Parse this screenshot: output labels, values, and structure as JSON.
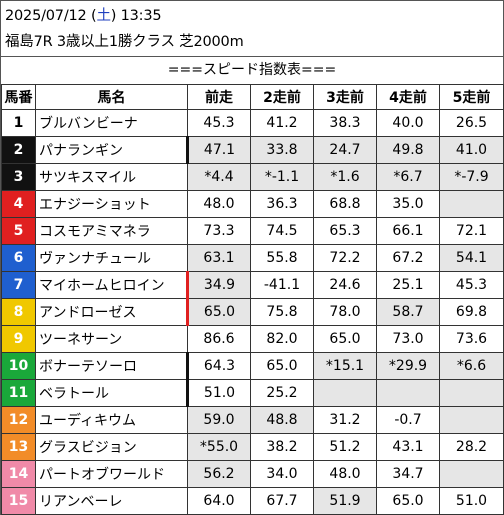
{
  "header": {
    "date_prefix": "2025/07/12 (",
    "weekday": "土",
    "date_suffix": ") 13:35",
    "race": "福島7R 3歳以上1勝クラス 芝2000m"
  },
  "title": "===スピード指数表===",
  "columns": [
    "馬番",
    "馬名",
    "前走",
    "2走前",
    "3走前",
    "4走前",
    "5走前"
  ],
  "colors": {
    "weekday": "#1f3fbf",
    "frame_1": "#ffffff",
    "frame_2": "#111111",
    "frame_3": "#e02020",
    "frame_4": "#1f5fcf",
    "frame_5": "#f0c800",
    "frame_6": "#1aa83a",
    "frame_7": "#f28c28",
    "frame_8": "#f08aa8",
    "cell_gray": "#e6e6e6",
    "marker_black": "#111111",
    "marker_red": "#e02020"
  },
  "rows": [
    {
      "num": "1",
      "name": "ブルバンビーナ",
      "vals": [
        "45.3",
        "41.2",
        "38.3",
        "40.0",
        "26.5"
      ]
    },
    {
      "num": "2",
      "name": "パナランギン",
      "vals": [
        "47.1",
        "33.8",
        "24.7",
        "49.8",
        "41.0"
      ]
    },
    {
      "num": "3",
      "name": "サツキスマイル",
      "vals": [
        "*4.4",
        "*-1.1",
        "*1.6",
        "*6.7",
        "*-7.9"
      ]
    },
    {
      "num": "4",
      "name": "エナジーショット",
      "vals": [
        "48.0",
        "36.3",
        "68.8",
        "35.0",
        ""
      ]
    },
    {
      "num": "5",
      "name": "コスモアミマネラ",
      "vals": [
        "73.3",
        "74.5",
        "65.3",
        "66.1",
        "72.1"
      ]
    },
    {
      "num": "6",
      "name": "ヴァンナチュール",
      "vals": [
        "63.1",
        "55.8",
        "72.2",
        "67.2",
        "54.1"
      ]
    },
    {
      "num": "7",
      "name": "マイホームヒロイン",
      "vals": [
        "34.9",
        "-41.1",
        "24.6",
        "25.1",
        "45.3"
      ]
    },
    {
      "num": "8",
      "name": "アンドローゼス",
      "vals": [
        "65.0",
        "75.8",
        "78.0",
        "58.7",
        "69.8"
      ]
    },
    {
      "num": "9",
      "name": "ツーネサーン",
      "vals": [
        "86.6",
        "82.0",
        "65.0",
        "73.0",
        "73.6"
      ]
    },
    {
      "num": "10",
      "name": "ボナーテソーロ",
      "vals": [
        "64.3",
        "65.0",
        "*15.1",
        "*29.9",
        "*6.6"
      ]
    },
    {
      "num": "11",
      "name": "ベラトール",
      "vals": [
        "51.0",
        "25.2",
        "",
        "",
        ""
      ]
    },
    {
      "num": "12",
      "name": "ユーディキウム",
      "vals": [
        "59.0",
        "48.8",
        "31.2",
        "-0.7",
        ""
      ]
    },
    {
      "num": "13",
      "name": "グラスビジョン",
      "vals": [
        "*55.0",
        "38.2",
        "51.2",
        "43.1",
        "28.2"
      ]
    },
    {
      "num": "14",
      "name": "パートオブワールド",
      "vals": [
        "56.2",
        "34.0",
        "48.0",
        "34.7",
        ""
      ]
    },
    {
      "num": "15",
      "name": "リアンベーレ",
      "vals": [
        "64.0",
        "67.7",
        "51.9",
        "65.0",
        "51.0"
      ]
    }
  ]
}
